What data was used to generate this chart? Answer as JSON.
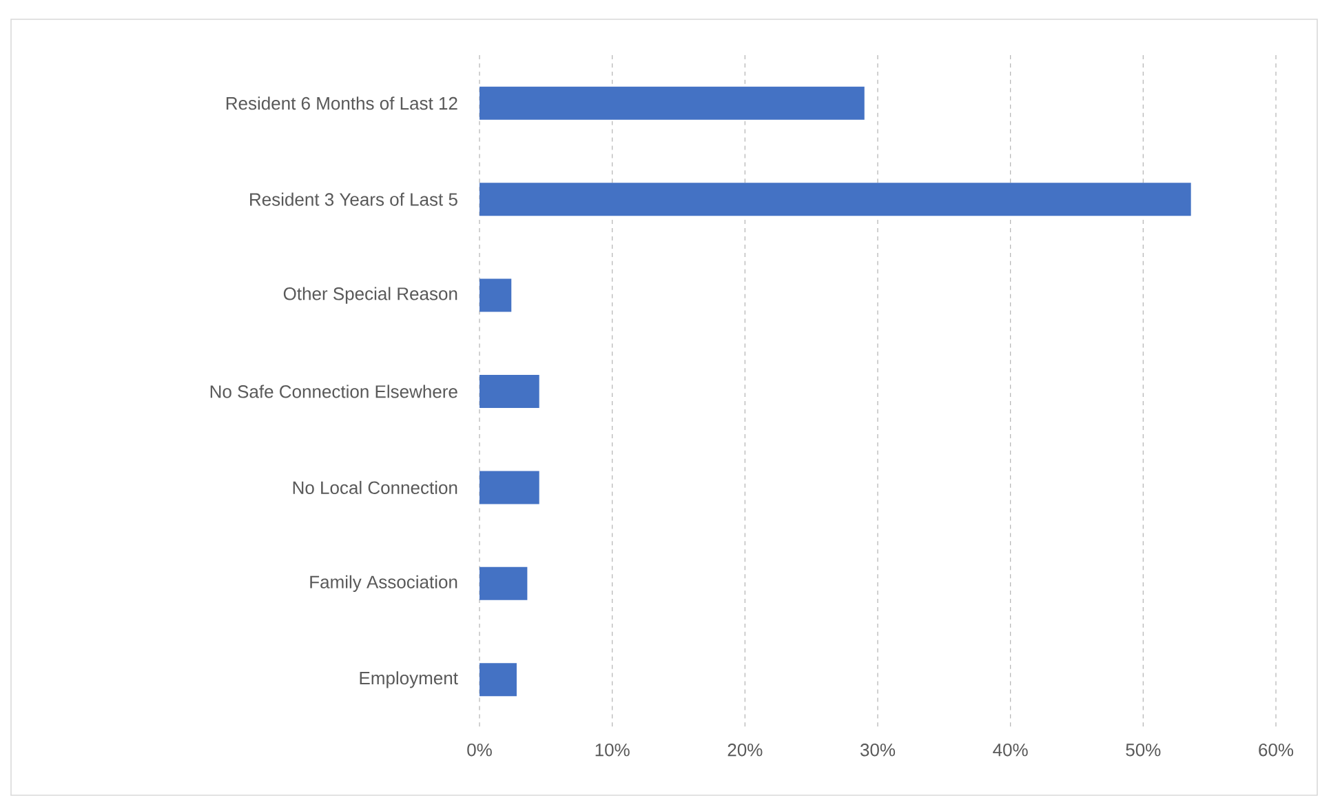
{
  "chart_data": {
    "type": "bar",
    "orientation": "horizontal",
    "categories": [
      "Resident 6 Months of Last 12",
      "Resident 3 Years of Last 5",
      "Other Special Reason",
      "No Safe Connection Elsewhere",
      "No Local Connection",
      "Family Association",
      "Employment"
    ],
    "values": [
      29.0,
      53.6,
      2.4,
      4.5,
      4.5,
      3.6,
      2.8
    ],
    "color": "#4472c4",
    "xlim": [
      0,
      60
    ],
    "xticks": [
      {
        "value": 0,
        "label": "0%"
      },
      {
        "value": 10,
        "label": "10%"
      },
      {
        "value": 20,
        "label": "20%"
      },
      {
        "value": 30,
        "label": "30%"
      },
      {
        "value": 40,
        "label": "40%"
      },
      {
        "value": 50,
        "label": "50%"
      },
      {
        "value": 60,
        "label": "60%"
      }
    ],
    "grid": "x"
  }
}
